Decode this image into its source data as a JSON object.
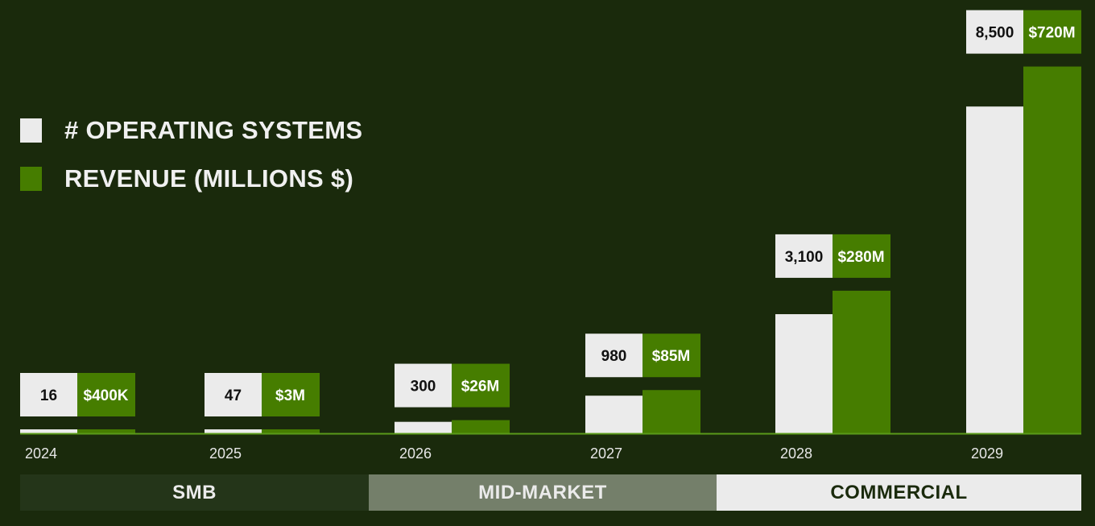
{
  "legend": {
    "systems_label": "# OPERATING SYSTEMS",
    "revenue_label": "REVENUE (MILLIONS $)"
  },
  "colors": {
    "background": "#1a2a0c",
    "systems": "#ebebeb",
    "revenue": "#467d00",
    "baseline": "#5a9a1a",
    "segment_smb": "#243519",
    "segment_mid": "#747f6a",
    "segment_commercial": "#ebebeb"
  },
  "segments": [
    {
      "label": "SMB",
      "span": [
        0,
        1
      ]
    },
    {
      "label": "MID-MARKET",
      "span": [
        2,
        3
      ]
    },
    {
      "label": "COMMERCIAL",
      "span": [
        4,
        5
      ]
    }
  ],
  "chart_data": {
    "type": "bar",
    "categories": [
      "2024",
      "2025",
      "2026",
      "2027",
      "2028",
      "2029"
    ],
    "series": [
      {
        "name": "# OPERATING SYSTEMS",
        "values": [
          16,
          47,
          300,
          980,
          3100,
          8500
        ],
        "labels": [
          "16",
          "47",
          "300",
          "980",
          "3,100",
          "8,500"
        ]
      },
      {
        "name": "REVENUE (MILLIONS $)",
        "values": [
          0.4,
          3,
          26,
          85,
          280,
          720
        ],
        "labels": [
          "$400K",
          "$3M",
          "$26M",
          "$85M",
          "$280M",
          "$720M"
        ]
      }
    ],
    "ylim_systems": [
      0,
      10600
    ],
    "ylim_revenue": [
      0,
      800
    ],
    "legend_position": "top-left",
    "grid": false
  }
}
